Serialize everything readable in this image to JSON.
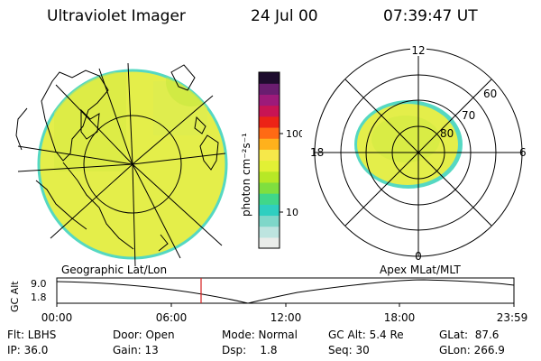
{
  "header": {
    "instrument": "Ultraviolet Imager",
    "date": "24 Jul 00",
    "time": "07:39:47 UT"
  },
  "colorbar": {
    "unit_label": "photon cm⁻²s⁻¹",
    "ticks": [
      "100",
      "10"
    ],
    "tick_values": [
      100,
      10
    ],
    "colors": [
      "#e9ece9",
      "#bde4df",
      "#7ed7c9",
      "#2fcfc0",
      "#40d78a",
      "#7fdf3f",
      "#b7e826",
      "#e2f035",
      "#f6e84a",
      "#ffb11c",
      "#ff6a14",
      "#ec2316",
      "#c81454",
      "#9d1a7a",
      "#6a1d70",
      "#1e0c2e"
    ]
  },
  "geo_panel": {
    "caption": "Geographic Lat/Lon"
  },
  "polar_panel": {
    "caption": "Apex MLat/MLT",
    "mlt_labels": {
      "top": "12",
      "left": "18",
      "right": "6",
      "bottom": "0"
    },
    "lat_labels": [
      "60",
      "70",
      "80"
    ]
  },
  "timeline": {
    "y_label": "GC Alt",
    "y_ticks": [
      "9.0",
      "1.8"
    ],
    "x_ticks": [
      "00:00",
      "06:00",
      "12:00",
      "18:00",
      "23:59"
    ],
    "marker_time": "07:39:47"
  },
  "info": {
    "col1": [
      "Flt: LBHS",
      "IP: 36.0"
    ],
    "col2": [
      "Door: Open",
      "Gain: 13"
    ],
    "col3": [
      "Mode: Normal",
      "Dsp:    1.8"
    ],
    "col4": [
      "GC Alt: 5.4 Re",
      "Seq: 30"
    ],
    "col5": [
      "GLat:  87.6",
      "GLon: 266.9"
    ]
  },
  "colors": {
    "aurora_fill": "#e4ee4a",
    "aurora_edge": "#55d8c2",
    "marker": "#d62020"
  }
}
